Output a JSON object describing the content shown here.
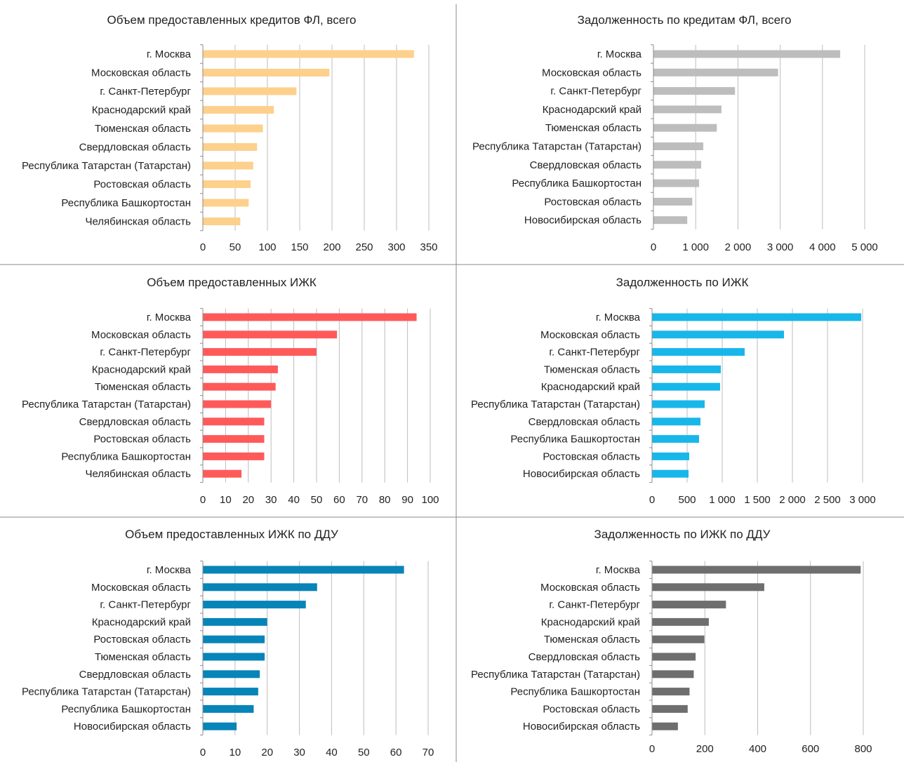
{
  "chart_data": [
    {
      "type": "bar",
      "orientation": "horizontal",
      "title": "Объем предоставленных кредитов ФЛ, всего",
      "color": "#FDD08C",
      "categories": [
        "г. Москва",
        "Московская область",
        "г. Санкт-Петербург",
        "Краснодарский край",
        "Тюменская область",
        "Свердловская область",
        "Республика Татарстан (Татарстан)",
        "Ростовская область",
        "Республика Башкортостан",
        "Челябинская область"
      ],
      "values": [
        327,
        196,
        145,
        110,
        93,
        84,
        78,
        74,
        71,
        58
      ],
      "xlim": [
        0,
        350
      ],
      "ticks": [
        0,
        50,
        100,
        150,
        200,
        250,
        300,
        350
      ],
      "tick_labels": [
        "0",
        "50",
        "100",
        "150",
        "200",
        "250",
        "300",
        "350"
      ],
      "grid": true
    },
    {
      "type": "bar",
      "orientation": "horizontal",
      "title": "Задолженность по кредитам ФЛ, всего",
      "color": "#BDBDBD",
      "categories": [
        "г. Москва",
        "Московская область",
        "г. Санкт-Петербург",
        "Краснодарский край",
        "Тюменская область",
        "Республика Татарстан (Татарстан)",
        "Свердловская область",
        "Республика Башкортостан",
        "Ростовская область",
        "Новосибирская область"
      ],
      "values": [
        4420,
        2950,
        1930,
        1610,
        1500,
        1180,
        1130,
        1080,
        920,
        800
      ],
      "xlim": [
        0,
        5000
      ],
      "ticks": [
        0,
        1000,
        2000,
        3000,
        4000,
        5000
      ],
      "tick_labels": [
        "0",
        "1 000",
        "2 000",
        "3 000",
        "4 000",
        "5 000"
      ],
      "grid": true
    },
    {
      "type": "bar",
      "orientation": "horizontal",
      "title": "Объем предоставленных ИЖК",
      "color": "#FF5A5A",
      "categories": [
        "г. Москва",
        "Московская область",
        "г. Санкт-Петербург",
        "Краснодарский край",
        "Тюменская область",
        "Республика Татарстан (Татарстан)",
        "Свердловская область",
        "Ростовская область",
        "Республика Башкортостан",
        "Челябинская область"
      ],
      "values": [
        94,
        59,
        50,
        33,
        32,
        30,
        27,
        27,
        27,
        17
      ],
      "xlim": [
        0,
        100
      ],
      "ticks": [
        0,
        10,
        20,
        30,
        40,
        50,
        60,
        70,
        80,
        90,
        100
      ],
      "tick_labels": [
        "0",
        "10",
        "20",
        "30",
        "40",
        "50",
        "60",
        "70",
        "80",
        "90",
        "100"
      ],
      "grid": true
    },
    {
      "type": "bar",
      "orientation": "horizontal",
      "title": "Задолженность по ИЖК",
      "color": "#18B7EA",
      "categories": [
        "г. Москва",
        "Московская область",
        "г. Санкт-Петербург",
        "Тюменская область",
        "Краснодарский край",
        "Республика Татарстан (Татарстан)",
        "Свердловская область",
        "Республика Башкортостан",
        "Ростовская область",
        "Новосибирская область"
      ],
      "values": [
        2980,
        1880,
        1320,
        980,
        970,
        750,
        690,
        670,
        530,
        520
      ],
      "xlim": [
        0,
        3000
      ],
      "ticks": [
        0,
        500,
        1000,
        1500,
        2000,
        2500,
        3000
      ],
      "tick_labels": [
        "0",
        "500",
        "1 000",
        "1 500",
        "2 000",
        "2 500",
        "3 000"
      ],
      "grid": true
    },
    {
      "type": "bar",
      "orientation": "horizontal",
      "title": "Объем предоставленных ИЖК по ДДУ",
      "color": "#0784B8",
      "categories": [
        "г. Москва",
        "Московская область",
        "г. Санкт-Петербург",
        "Краснодарский край",
        "Ростовская область",
        "Тюменская область",
        "Свердловская область",
        "Республика Татарстан (Татарстан)",
        "Республика Башкортостан",
        "Новосибирская область"
      ],
      "values": [
        62.5,
        35.5,
        32,
        20,
        19.2,
        19.2,
        17.7,
        17.2,
        15.8,
        10.5
      ],
      "xlim": [
        0,
        70
      ],
      "ticks": [
        0,
        10,
        20,
        30,
        40,
        50,
        60,
        70
      ],
      "tick_labels": [
        "0",
        "10",
        "20",
        "30",
        "40",
        "50",
        "60",
        "70"
      ],
      "grid": true
    },
    {
      "type": "bar",
      "orientation": "horizontal",
      "title": "Задолженность по ИЖК по ДДУ",
      "color": "#6E6E6E",
      "categories": [
        "г. Москва",
        "Московская область",
        "г. Санкт-Петербург",
        "Краснодарский край",
        "Тюменская область",
        "Свердловская область",
        "Республика Татарстан (Татарстан)",
        "Республика Башкортостан",
        "Ростовская область",
        "Новосибирская область"
      ],
      "values": [
        790,
        425,
        280,
        215,
        198,
        165,
        158,
        142,
        135,
        98
      ],
      "xlim": [
        0,
        800
      ],
      "ticks": [
        0,
        200,
        400,
        600,
        800
      ],
      "tick_labels": [
        "0",
        "200",
        "400",
        "600",
        "800"
      ],
      "grid": true
    }
  ]
}
